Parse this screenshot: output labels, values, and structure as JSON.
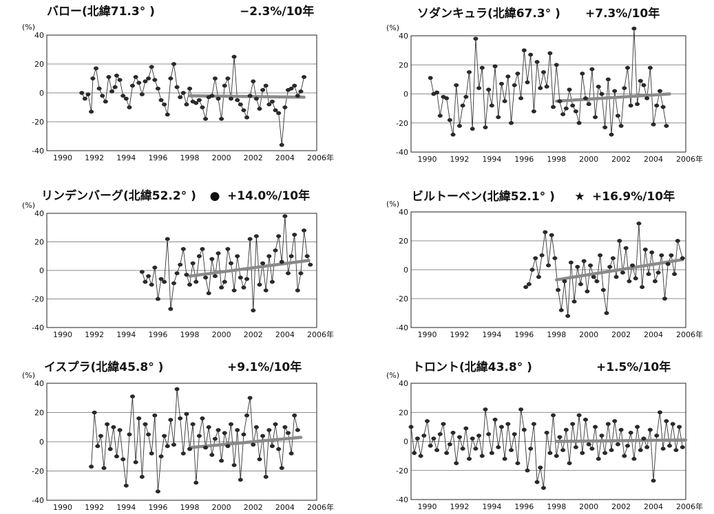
{
  "chart_data": [
    {
      "type": "line",
      "title": "バロー(北緯71.3°  )",
      "trend_label": "−2.3%/10年",
      "marker": "",
      "unit_label": "(%)",
      "year_suffix": "年",
      "x_ticks": [
        "1990",
        "1992",
        "1994",
        "1996",
        "1998",
        "2000",
        "2002",
        "2004",
        "2006"
      ],
      "y_ticks": [
        "40",
        "20",
        "0",
        "-20",
        "-40"
      ],
      "xlim": [
        1989,
        2006
      ],
      "ylim": [
        -40,
        40
      ],
      "grid": true,
      "trend": {
        "x": [
          1998.0,
          2005.2
        ],
        "y": [
          -2,
          -3
        ]
      },
      "x": [
        1991.2,
        1991.4,
        1991.6,
        1991.8,
        1991.9,
        1992.1,
        1992.3,
        1992.5,
        1992.7,
        1992.9,
        1993.1,
        1993.3,
        1993.4,
        1993.6,
        1993.8,
        1994.0,
        1994.2,
        1994.4,
        1994.6,
        1994.8,
        1995.0,
        1995.2,
        1995.4,
        1995.6,
        1995.8,
        1996.0,
        1996.2,
        1996.4,
        1996.6,
        1996.8,
        1997.0,
        1997.2,
        1997.4,
        1997.6,
        1997.8,
        1998.0,
        1998.2,
        1998.4,
        1998.6,
        1998.8,
        1999.0,
        1999.2,
        1999.4,
        1999.6,
        1999.8,
        2000.0,
        2000.2,
        2000.4,
        2000.6,
        2000.8,
        2001.0,
        2001.2,
        2001.4,
        2001.6,
        2001.8,
        2002.0,
        2002.2,
        2002.4,
        2002.6,
        2002.8,
        2003.0,
        2003.2,
        2003.4,
        2003.6,
        2003.8,
        2004.0,
        2004.2,
        2004.4,
        2004.6,
        2004.8,
        2005.0,
        2005.2
      ],
      "y": [
        0,
        -4,
        -1,
        -13,
        10,
        17,
        3,
        -2,
        -6,
        11,
        1,
        4,
        12,
        9,
        -2,
        -4,
        -10,
        5,
        11,
        7,
        -1,
        8,
        10,
        18,
        9,
        3,
        -5,
        -8,
        -15,
        10,
        20,
        4,
        -3,
        0,
        -8,
        3,
        -6,
        -7,
        -5,
        -10,
        -18,
        -3,
        -2,
        10,
        -4,
        -18,
        5,
        10,
        -4,
        25,
        -5,
        -8,
        -12,
        -17,
        -2,
        8,
        -4,
        -11,
        2,
        5,
        -8,
        -6,
        -12,
        -14,
        -36,
        -10,
        2,
        3,
        5,
        -2,
        1,
        11
      ]
    },
    {
      "type": "line",
      "title": "ソダンキュラ(北緯67.3°  )",
      "trend_label": "+7.3%/10年",
      "marker": "",
      "unit_label": "(%)",
      "year_suffix": "年",
      "x_ticks": [
        "1990",
        "1992",
        "1994",
        "1996",
        "1998",
        "2000",
        "2002",
        "2004",
        "2006"
      ],
      "y_ticks": [
        "40",
        "20",
        "0",
        "-20",
        "-40"
      ],
      "xlim": [
        1989,
        2006
      ],
      "ylim": [
        -40,
        40
      ],
      "grid": true,
      "trend": {
        "x": [
          1998.0,
          2005.0
        ],
        "y": [
          -5,
          0
        ]
      },
      "x": [
        1990.2,
        1990.4,
        1990.6,
        1990.8,
        1991.0,
        1991.2,
        1991.4,
        1991.6,
        1991.8,
        1992.0,
        1992.2,
        1992.4,
        1992.6,
        1992.8,
        1993.0,
        1993.2,
        1993.4,
        1993.6,
        1993.8,
        1994.0,
        1994.2,
        1994.4,
        1994.6,
        1994.8,
        1995.0,
        1995.2,
        1995.4,
        1995.6,
        1995.8,
        1996.0,
        1996.2,
        1996.4,
        1996.6,
        1996.8,
        1997.0,
        1997.2,
        1997.4,
        1997.6,
        1997.8,
        1998.0,
        1998.2,
        1998.4,
        1998.6,
        1998.8,
        1999.0,
        1999.2,
        1999.4,
        1999.6,
        1999.8,
        2000.0,
        2000.2,
        2000.4,
        2000.6,
        2000.8,
        2001.0,
        2001.2,
        2001.4,
        2001.6,
        2001.8,
        2002.0,
        2002.2,
        2002.4,
        2002.6,
        2002.8,
        2003.0,
        2003.2,
        2003.4,
        2003.6,
        2003.8,
        2004.0,
        2004.2,
        2004.4,
        2004.6,
        2004.8
      ],
      "y": [
        11,
        0,
        1,
        -15,
        -2,
        -3,
        -18,
        -28,
        6,
        -22,
        -8,
        -2,
        15,
        -24,
        38,
        4,
        18,
        -23,
        3,
        -8,
        19,
        -16,
        7,
        -5,
        12,
        -20,
        6,
        14,
        -3,
        30,
        8,
        27,
        -12,
        22,
        4,
        15,
        5,
        28,
        -9,
        20,
        -5,
        -14,
        -10,
        3,
        -8,
        -12,
        -20,
        14,
        -3,
        -7,
        17,
        -16,
        5,
        0,
        -23,
        10,
        -28,
        2,
        -15,
        -22,
        4,
        18,
        -8,
        45,
        -7,
        9,
        6,
        -3,
        18,
        -21,
        -8,
        2,
        -9,
        -22
      ]
    },
    {
      "type": "line",
      "title": "リンデンバーグ(北緯52.2°  )",
      "trend_label": "+14.0%/10年",
      "marker": "●",
      "unit_label": "(%)",
      "year_suffix": "年",
      "x_ticks": [
        "1990",
        "1992",
        "1994",
        "1996",
        "1998",
        "2000",
        "2002",
        "2004",
        "2006"
      ],
      "y_ticks": [
        "40",
        "20",
        "0",
        "-20",
        "-40"
      ],
      "xlim": [
        1989,
        2006
      ],
      "ylim": [
        -40,
        40
      ],
      "grid": true,
      "trend": {
        "x": [
          1998.0,
          2005.5
        ],
        "y": [
          -4,
          7
        ]
      },
      "x": [
        1995.0,
        1995.2,
        1995.4,
        1995.6,
        1995.8,
        1996.0,
        1996.2,
        1996.4,
        1996.6,
        1996.8,
        1997.0,
        1997.2,
        1997.4,
        1997.6,
        1997.8,
        1998.0,
        1998.2,
        1998.4,
        1998.6,
        1998.8,
        1999.0,
        1999.2,
        1999.4,
        1999.6,
        1999.8,
        2000.0,
        2000.2,
        2000.4,
        2000.6,
        2000.8,
        2001.0,
        2001.2,
        2001.4,
        2001.6,
        2001.8,
        2002.0,
        2002.2,
        2002.4,
        2002.6,
        2002.8,
        2003.0,
        2003.2,
        2003.4,
        2003.6,
        2003.8,
        2004.0,
        2004.2,
        2004.4,
        2004.6,
        2004.8,
        2005.0,
        2005.2,
        2005.4,
        2005.6
      ],
      "y": [
        -1,
        -8,
        -4,
        -10,
        2,
        -20,
        -6,
        -8,
        22,
        -27,
        -9,
        -2,
        4,
        15,
        -3,
        -10,
        5,
        -8,
        10,
        15,
        -5,
        -16,
        8,
        -4,
        12,
        -12,
        -8,
        15,
        5,
        -14,
        10,
        -5,
        -12,
        -6,
        22,
        -28,
        24,
        -10,
        5,
        -14,
        10,
        -8,
        14,
        24,
        6,
        38,
        -2,
        10,
        25,
        -14,
        -2,
        28,
        10,
        4
      ]
    },
    {
      "type": "line",
      "title": "ビルトーベン(北緯52.1°  )",
      "trend_label": "+16.9%/10年",
      "marker": "★",
      "unit_label": "(%)",
      "year_suffix": "年",
      "x_ticks": [
        "1990",
        "1992",
        "1994",
        "1996",
        "1998",
        "2000",
        "2002",
        "2004",
        "2006"
      ],
      "y_ticks": [
        "40",
        "20",
        "0",
        "-20",
        "-40"
      ],
      "xlim": [
        1989,
        2006
      ],
      "ylim": [
        -40,
        40
      ],
      "grid": true,
      "trend": {
        "x": [
          1998.0,
          2005.8
        ],
        "y": [
          -7,
          7
        ]
      },
      "x": [
        1996.1,
        1996.3,
        1996.5,
        1996.7,
        1996.9,
        1997.1,
        1997.3,
        1997.5,
        1997.7,
        1997.9,
        1998.1,
        1998.3,
        1998.5,
        1998.7,
        1998.9,
        1999.1,
        1999.3,
        1999.5,
        1999.7,
        1999.9,
        2000.1,
        2000.3,
        2000.5,
        2000.7,
        2000.9,
        2001.1,
        2001.3,
        2001.5,
        2001.7,
        2001.9,
        2002.1,
        2002.3,
        2002.5,
        2002.7,
        2002.9,
        2003.1,
        2003.3,
        2003.5,
        2003.7,
        2003.9,
        2004.1,
        2004.3,
        2004.5,
        2004.7,
        2004.9,
        2005.1,
        2005.3,
        2005.5,
        2005.8
      ],
      "y": [
        -12,
        -10,
        0,
        8,
        -5,
        10,
        26,
        3,
        24,
        8,
        -14,
        -28,
        -8,
        -32,
        5,
        -22,
        2,
        -10,
        6,
        -15,
        3,
        -5,
        -8,
        10,
        -14,
        -30,
        2,
        8,
        -5,
        20,
        -2,
        15,
        -8,
        3,
        -6,
        32,
        -12,
        14,
        -3,
        12,
        -8,
        -2,
        10,
        -20,
        4,
        10,
        -3,
        20,
        8
      ]
    },
    {
      "type": "line",
      "title": "イスプラ(北緯45.8°  )",
      "trend_label": "+9.1%/10年",
      "marker": "",
      "unit_label": "(%)",
      "year_suffix": "年",
      "x_ticks": [
        "1990",
        "1992",
        "1994",
        "1996",
        "1998",
        "2000",
        "2002",
        "2004",
        "2006"
      ],
      "y_ticks": [
        "40",
        "20",
        "0",
        "-20",
        "-40"
      ],
      "xlim": [
        1989,
        2006
      ],
      "ylim": [
        -40,
        40
      ],
      "grid": true,
      "trend": {
        "x": [
          1998.0,
          2005.0
        ],
        "y": [
          -4,
          3
        ]
      },
      "x": [
        1991.8,
        1992.0,
        1992.2,
        1992.4,
        1992.6,
        1992.8,
        1993.0,
        1993.2,
        1993.4,
        1993.6,
        1993.8,
        1994.0,
        1994.2,
        1994.4,
        1994.6,
        1994.8,
        1995.0,
        1995.2,
        1995.4,
        1995.6,
        1995.8,
        1996.0,
        1996.2,
        1996.4,
        1996.6,
        1996.8,
        1997.0,
        1997.2,
        1997.4,
        1997.6,
        1997.8,
        1998.0,
        1998.2,
        1998.4,
        1998.6,
        1998.8,
        1999.0,
        1999.2,
        1999.4,
        1999.6,
        1999.8,
        2000.0,
        2000.2,
        2000.4,
        2000.6,
        2000.8,
        2001.0,
        2001.2,
        2001.4,
        2001.6,
        2001.8,
        2002.0,
        2002.2,
        2002.4,
        2002.6,
        2002.8,
        2003.0,
        2003.2,
        2003.4,
        2003.6,
        2003.8,
        2004.0,
        2004.2,
        2004.4,
        2004.6,
        2004.8
      ],
      "y": [
        -17,
        20,
        -3,
        4,
        -18,
        12,
        -5,
        10,
        -10,
        8,
        -12,
        -30,
        5,
        31,
        -14,
        16,
        -24,
        12,
        5,
        -8,
        18,
        -34,
        -10,
        4,
        -3,
        15,
        -2,
        36,
        16,
        -8,
        19,
        -5,
        12,
        -28,
        4,
        16,
        -4,
        10,
        -9,
        2,
        8,
        -13,
        6,
        -3,
        12,
        -16,
        8,
        -26,
        5,
        18,
        30,
        -2,
        10,
        -12,
        4,
        -24,
        8,
        -3,
        12,
        -5,
        -18,
        10,
        6,
        -8,
        18,
        8
      ]
    },
    {
      "type": "line",
      "title": "トロント(北緯43.8°  )",
      "trend_label": "+1.5%/10年",
      "marker": "",
      "unit_label": "(%)",
      "year_suffix": "年",
      "x_ticks": [
        "1990",
        "1992",
        "1994",
        "1996",
        "1998",
        "2000",
        "2002",
        "2004",
        "2006"
      ],
      "y_ticks": [
        "40",
        "20",
        "0",
        "-20",
        "-40"
      ],
      "xlim": [
        1989,
        2006
      ],
      "ylim": [
        -40,
        40
      ],
      "grid": true,
      "trend": {
        "x": [
          1998.0,
          2006.0
        ],
        "y": [
          0,
          1
        ]
      },
      "x": [
        1989.0,
        1989.2,
        1989.4,
        1989.6,
        1989.8,
        1990.0,
        1990.2,
        1990.4,
        1990.6,
        1990.8,
        1991.0,
        1991.2,
        1991.4,
        1991.6,
        1991.8,
        1992.0,
        1992.2,
        1992.4,
        1992.6,
        1992.8,
        1993.0,
        1993.2,
        1993.4,
        1993.6,
        1993.8,
        1994.0,
        1994.2,
        1994.4,
        1994.6,
        1994.8,
        1995.0,
        1995.2,
        1995.4,
        1995.6,
        1995.8,
        1996.0,
        1996.2,
        1996.4,
        1996.6,
        1996.8,
        1997.0,
        1997.2,
        1997.4,
        1997.6,
        1997.8,
        1998.0,
        1998.2,
        1998.4,
        1998.6,
        1998.8,
        1999.0,
        1999.2,
        1999.4,
        1999.6,
        1999.8,
        2000.0,
        2000.2,
        2000.4,
        2000.6,
        2000.8,
        2001.0,
        2001.2,
        2001.4,
        2001.6,
        2001.8,
        2002.0,
        2002.2,
        2002.4,
        2002.6,
        2002.8,
        2003.0,
        2003.2,
        2003.4,
        2003.6,
        2003.8,
        2004.0,
        2004.2,
        2004.4,
        2004.6,
        2004.8,
        2005.0,
        2005.2,
        2005.4,
        2005.6,
        2005.8
      ],
      "y": [
        10,
        -8,
        2,
        -10,
        4,
        14,
        -3,
        2,
        -6,
        5,
        12,
        -8,
        -2,
        6,
        -15,
        3,
        -5,
        9,
        -12,
        2,
        -5,
        4,
        -10,
        22,
        5,
        -8,
        15,
        -4,
        10,
        -12,
        12,
        -6,
        5,
        -15,
        22,
        8,
        -20,
        -5,
        12,
        -28,
        -18,
        -32,
        6,
        -8,
        18,
        -10,
        3,
        -6,
        8,
        -15,
        12,
        -4,
        18,
        -8,
        15,
        -2,
        -5,
        10,
        -12,
        4,
        -8,
        12,
        -6,
        14,
        -2,
        8,
        -10,
        -3,
        6,
        -12,
        10,
        -6,
        2,
        -4,
        8,
        -27,
        4,
        20,
        -5,
        14,
        -3,
        12,
        -6,
        10,
        -4
      ]
    }
  ]
}
